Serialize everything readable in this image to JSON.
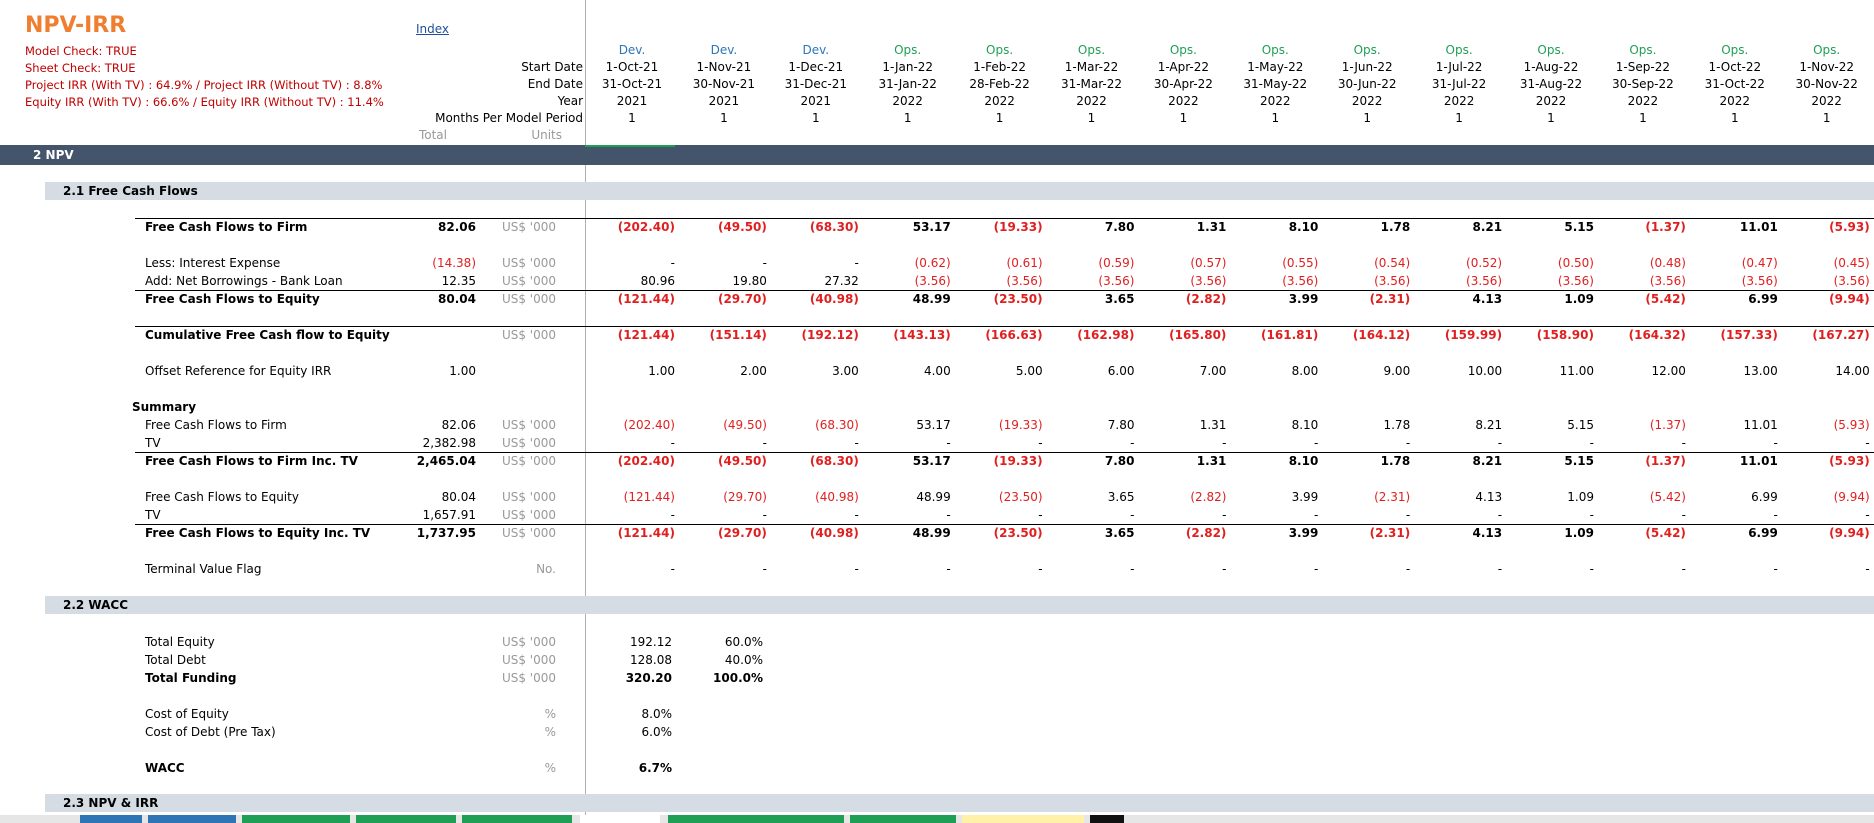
{
  "sheet": {
    "title": "NPV-IRR",
    "index_link": "Index",
    "checks": [
      "Model Check: TRUE",
      "Sheet Check: TRUE",
      "Project IRR  (With TV) : 64.9%  / Project IRR (Without TV) : 8.8%",
      "Equity IRR  (With TV) : 66.6% / Equity IRR (Without TV) : 11.4%"
    ]
  },
  "header_labels": {
    "start_date": "Start Date",
    "end_date": "End Date",
    "year": "Year",
    "months": "Months Per Model Period",
    "total": "Total",
    "units": "Units"
  },
  "periods": [
    {
      "phase": "Dev.",
      "start": "1-Oct-21",
      "end": "31-Oct-21",
      "year": "2021",
      "months": "1"
    },
    {
      "phase": "Dev.",
      "start": "1-Nov-21",
      "end": "30-Nov-21",
      "year": "2021",
      "months": "1"
    },
    {
      "phase": "Dev.",
      "start": "1-Dec-21",
      "end": "31-Dec-21",
      "year": "2021",
      "months": "1"
    },
    {
      "phase": "Ops.",
      "start": "1-Jan-22",
      "end": "31-Jan-22",
      "year": "2022",
      "months": "1"
    },
    {
      "phase": "Ops.",
      "start": "1-Feb-22",
      "end": "28-Feb-22",
      "year": "2022",
      "months": "1"
    },
    {
      "phase": "Ops.",
      "start": "1-Mar-22",
      "end": "31-Mar-22",
      "year": "2022",
      "months": "1"
    },
    {
      "phase": "Ops.",
      "start": "1-Apr-22",
      "end": "30-Apr-22",
      "year": "2022",
      "months": "1"
    },
    {
      "phase": "Ops.",
      "start": "1-May-22",
      "end": "31-May-22",
      "year": "2022",
      "months": "1"
    },
    {
      "phase": "Ops.",
      "start": "1-Jun-22",
      "end": "30-Jun-22",
      "year": "2022",
      "months": "1"
    },
    {
      "phase": "Ops.",
      "start": "1-Jul-22",
      "end": "31-Jul-22",
      "year": "2022",
      "months": "1"
    },
    {
      "phase": "Ops.",
      "start": "1-Aug-22",
      "end": "31-Aug-22",
      "year": "2022",
      "months": "1"
    },
    {
      "phase": "Ops.",
      "start": "1-Sep-22",
      "end": "30-Sep-22",
      "year": "2022",
      "months": "1"
    },
    {
      "phase": "Ops.",
      "start": "1-Oct-22",
      "end": "31-Oct-22",
      "year": "2022",
      "months": "1"
    },
    {
      "phase": "Ops.",
      "start": "1-Nov-22",
      "end": "30-Nov-22",
      "year": "2022",
      "months": "1"
    }
  ],
  "sections": {
    "npv": "2  NPV",
    "fcf": "2.1  Free Cash Flows",
    "wacc": "2.2  WACC",
    "npv_irr": "2.3  NPV & IRR"
  },
  "summary_label": "Summary",
  "rows": [
    {
      "label": "Free Cash Flows to Firm",
      "total": "82.06",
      "units": "US$ '000",
      "bold": true,
      "values": [
        "(202.40)",
        "(49.50)",
        "(68.30)",
        "53.17",
        "(19.33)",
        "7.80",
        "1.31",
        "8.10",
        "1.78",
        "8.21",
        "5.15",
        "(1.37)",
        "11.01",
        "(5.93)"
      ]
    },
    {
      "label": "Less: Interest Expense",
      "total": "(14.38)",
      "units": "US$ '000",
      "bold": false,
      "values": [
        "-",
        "-",
        "-",
        "(0.62)",
        "(0.61)",
        "(0.59)",
        "(0.57)",
        "(0.55)",
        "(0.54)",
        "(0.52)",
        "(0.50)",
        "(0.48)",
        "(0.47)",
        "(0.45)"
      ]
    },
    {
      "label": "Add: Net Borrowings - Bank Loan",
      "total": "12.35",
      "units": "US$ '000",
      "bold": false,
      "values": [
        "80.96",
        "19.80",
        "27.32",
        "(3.56)",
        "(3.56)",
        "(3.56)",
        "(3.56)",
        "(3.56)",
        "(3.56)",
        "(3.56)",
        "(3.56)",
        "(3.56)",
        "(3.56)",
        "(3.56)"
      ]
    },
    {
      "label": "Free Cash Flows to Equity",
      "total": "80.04",
      "units": "US$ '000",
      "bold": true,
      "values": [
        "(121.44)",
        "(29.70)",
        "(40.98)",
        "48.99",
        "(23.50)",
        "3.65",
        "(2.82)",
        "3.99",
        "(2.31)",
        "4.13",
        "1.09",
        "(5.42)",
        "6.99",
        "(9.94)"
      ]
    },
    {
      "label": "Cumulative Free Cash flow to Equity",
      "total": "",
      "units": "US$ '000",
      "bold": true,
      "values": [
        "(121.44)",
        "(151.14)",
        "(192.12)",
        "(143.13)",
        "(166.63)",
        "(162.98)",
        "(165.80)",
        "(161.81)",
        "(164.12)",
        "(159.99)",
        "(158.90)",
        "(164.32)",
        "(157.33)",
        "(167.27)"
      ]
    },
    {
      "label": "Offset Reference for Equity IRR",
      "total": "1.00",
      "units": "",
      "bold": false,
      "values": [
        "1.00",
        "2.00",
        "3.00",
        "4.00",
        "5.00",
        "6.00",
        "7.00",
        "8.00",
        "9.00",
        "10.00",
        "11.00",
        "12.00",
        "13.00",
        "14.00"
      ]
    },
    {
      "label": "Free Cash Flows to Firm",
      "total": "82.06",
      "units": "US$ '000",
      "bold": false,
      "values": [
        "(202.40)",
        "(49.50)",
        "(68.30)",
        "53.17",
        "(19.33)",
        "7.80",
        "1.31",
        "8.10",
        "1.78",
        "8.21",
        "5.15",
        "(1.37)",
        "11.01",
        "(5.93)"
      ]
    },
    {
      "label": "TV",
      "total": "2,382.98",
      "units": "US$ '000",
      "bold": false,
      "values": [
        "-",
        "-",
        "-",
        "-",
        "-",
        "-",
        "-",
        "-",
        "-",
        "-",
        "-",
        "-",
        "-",
        "-"
      ]
    },
    {
      "label": "Free Cash Flows to Firm Inc. TV",
      "total": "2,465.04",
      "units": "US$ '000",
      "bold": true,
      "values": [
        "(202.40)",
        "(49.50)",
        "(68.30)",
        "53.17",
        "(19.33)",
        "7.80",
        "1.31",
        "8.10",
        "1.78",
        "8.21",
        "5.15",
        "(1.37)",
        "11.01",
        "(5.93)"
      ]
    },
    {
      "label": "Free Cash Flows to Equity",
      "total": "80.04",
      "units": "US$ '000",
      "bold": false,
      "values": [
        "(121.44)",
        "(29.70)",
        "(40.98)",
        "48.99",
        "(23.50)",
        "3.65",
        "(2.82)",
        "3.99",
        "(2.31)",
        "4.13",
        "1.09",
        "(5.42)",
        "6.99",
        "(9.94)"
      ]
    },
    {
      "label": "TV",
      "total": "1,657.91",
      "units": "US$ '000",
      "bold": false,
      "values": [
        "-",
        "-",
        "-",
        "-",
        "-",
        "-",
        "-",
        "-",
        "-",
        "-",
        "-",
        "-",
        "-",
        "-"
      ]
    },
    {
      "label": "Free Cash Flows to Equity Inc. TV",
      "total": "1,737.95",
      "units": "US$ '000",
      "bold": true,
      "values": [
        "(121.44)",
        "(29.70)",
        "(40.98)",
        "48.99",
        "(23.50)",
        "3.65",
        "(2.82)",
        "3.99",
        "(2.31)",
        "4.13",
        "1.09",
        "(5.42)",
        "6.99",
        "(9.94)"
      ]
    },
    {
      "label": "Terminal Value Flag",
      "total": "",
      "units": "No.",
      "bold": false,
      "values": [
        "-",
        "-",
        "-",
        "-",
        "-",
        "-",
        "-",
        "-",
        "-",
        "-",
        "-",
        "-",
        "-",
        "-"
      ]
    }
  ],
  "wacc": [
    {
      "label": "Total Equity",
      "units": "US$ '000",
      "value": "192.12",
      "pct": "60.0%",
      "bold": false
    },
    {
      "label": "Total Debt",
      "units": "US$ '000",
      "value": "128.08",
      "pct": "40.0%",
      "bold": false
    },
    {
      "label": "Total Funding",
      "units": "US$ '000",
      "value": "320.20",
      "pct": "100.0%",
      "bold": true
    },
    {
      "label": "Cost of Equity",
      "units": "%",
      "value": "8.0%",
      "pct": "",
      "bold": false
    },
    {
      "label": "Cost of Debt (Pre Tax)",
      "units": "%",
      "value": "6.0%",
      "pct": "",
      "bold": false
    },
    {
      "label": "WACC",
      "units": "%",
      "value": "6.7%",
      "pct": "",
      "bold": true
    }
  ],
  "colors": {
    "title": "#ef7f2f",
    "check_text": "#c00000",
    "negative": "#e02020",
    "dev_phase": "#2e75b6",
    "ops_phase": "#1f9e55",
    "npv_band": "#44546a",
    "sub_band": "#d6dce4"
  }
}
